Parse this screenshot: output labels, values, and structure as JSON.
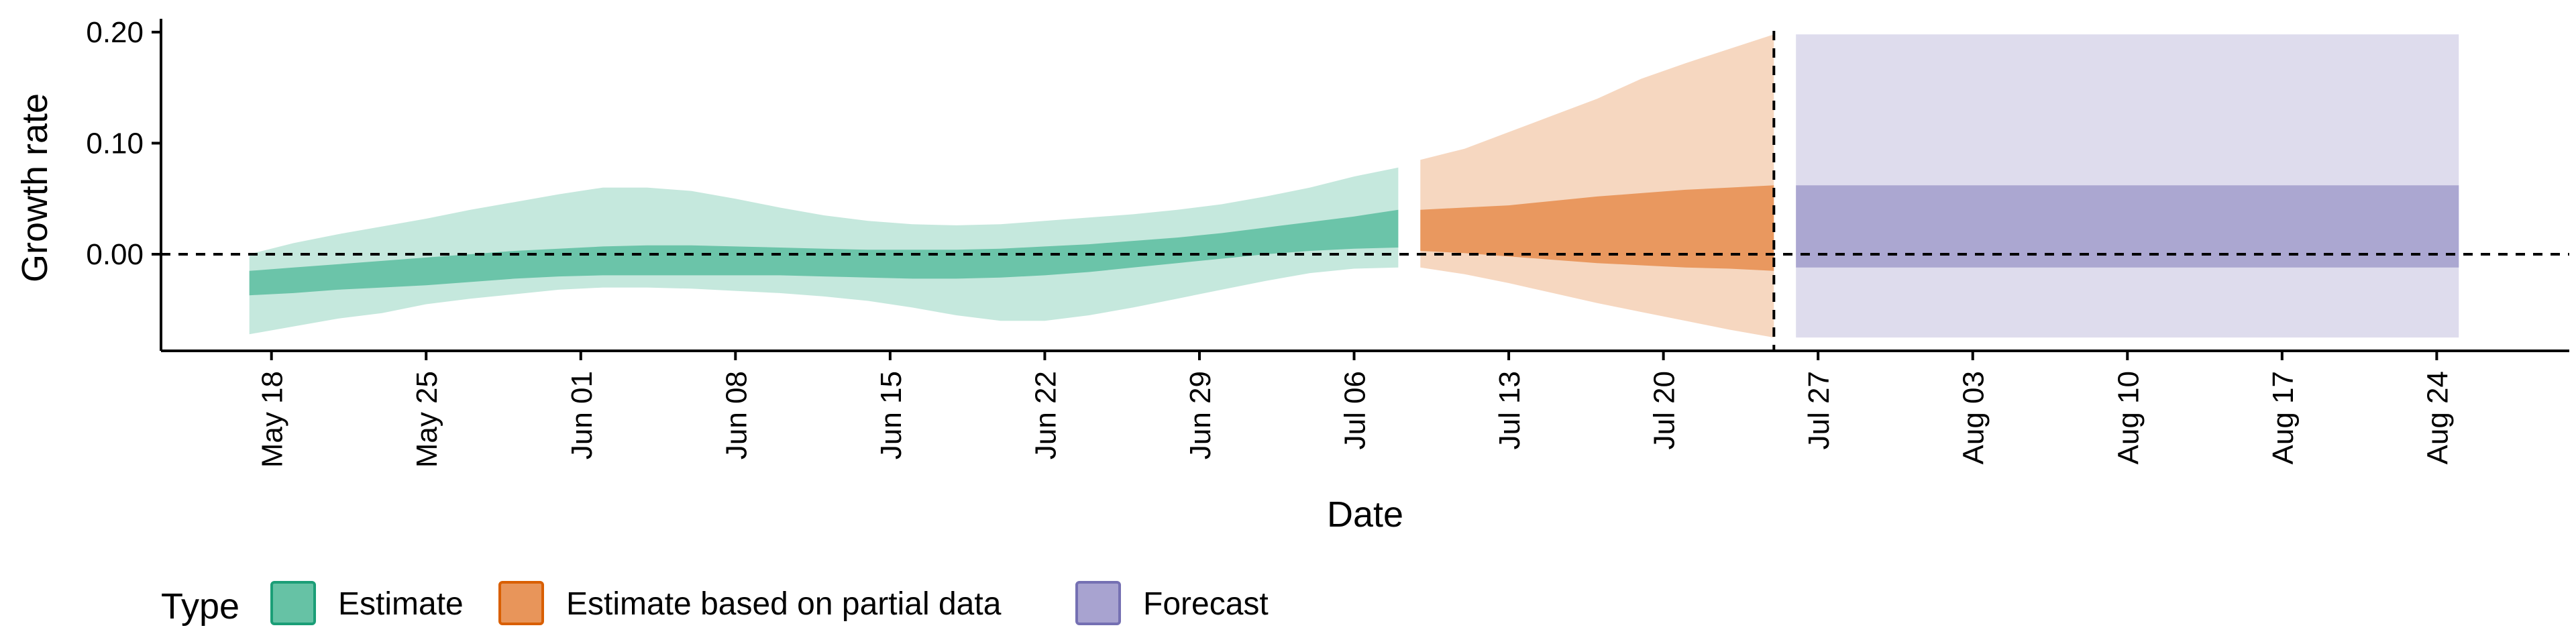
{
  "chart_data": {
    "type": "area",
    "xlabel": "Date",
    "ylabel": "Growth rate",
    "x_axis_type": "date",
    "x_range": [
      "2020-05-13",
      "2020-08-30"
    ],
    "y_range": [
      -0.087,
      0.212
    ],
    "y_ticks": [
      0.0,
      0.1,
      0.2
    ],
    "y_tick_labels": [
      "0.00",
      "0.10",
      "0.20"
    ],
    "x_ticks": [
      "2020-05-18",
      "2020-05-25",
      "2020-06-01",
      "2020-06-08",
      "2020-06-15",
      "2020-06-22",
      "2020-06-29",
      "2020-07-06",
      "2020-07-13",
      "2020-07-20",
      "2020-07-27",
      "2020-08-03",
      "2020-08-10",
      "2020-08-17",
      "2020-08-24"
    ],
    "x_tick_labels": [
      "May 18",
      "May 25",
      "Jun 01",
      "Jun 08",
      "Jun 15",
      "Jun 22",
      "Jun 29",
      "Jul 06",
      "Jul 13",
      "Jul 20",
      "Jul 27",
      "Aug 03",
      "Aug 10",
      "Aug 17",
      "Aug 24"
    ],
    "grid": false,
    "hline": {
      "y": 0,
      "style": "dashed"
    },
    "vline": {
      "x": "2020-07-25",
      "style": "dashed"
    },
    "legend": {
      "title": "Type",
      "position": "bottom-left",
      "entries": [
        {
          "label": "Estimate",
          "fill": "#66c2a5",
          "border": "#1b9e77"
        },
        {
          "label": "Estimate based on partial data",
          "fill": "#e8955a",
          "border": "#d95f02"
        },
        {
          "label": "Forecast",
          "fill": "#a8a3d0",
          "border": "#7570b3"
        }
      ]
    },
    "series": [
      {
        "name": "Estimate",
        "color": "#66c2a5",
        "x": [
          "2020-05-17",
          "2020-05-19",
          "2020-05-21",
          "2020-05-23",
          "2020-05-25",
          "2020-05-27",
          "2020-05-29",
          "2020-05-31",
          "2020-06-02",
          "2020-06-04",
          "2020-06-06",
          "2020-06-08",
          "2020-06-10",
          "2020-06-12",
          "2020-06-14",
          "2020-06-16",
          "2020-06-18",
          "2020-06-20",
          "2020-06-22",
          "2020-06-24",
          "2020-06-26",
          "2020-06-28",
          "2020-06-30",
          "2020-07-02",
          "2020-07-04",
          "2020-07-06",
          "2020-07-08"
        ],
        "lower_90": [
          -0.072,
          -0.065,
          -0.058,
          -0.053,
          -0.045,
          -0.04,
          -0.036,
          -0.032,
          -0.03,
          -0.03,
          -0.031,
          -0.033,
          -0.035,
          -0.038,
          -0.042,
          -0.048,
          -0.055,
          -0.06,
          -0.06,
          -0.055,
          -0.048,
          -0.04,
          -0.032,
          -0.024,
          -0.017,
          -0.013,
          -0.012
        ],
        "upper_90": [
          0.0,
          0.01,
          0.018,
          0.025,
          0.032,
          0.04,
          0.047,
          0.054,
          0.06,
          0.06,
          0.057,
          0.05,
          0.042,
          0.035,
          0.03,
          0.027,
          0.026,
          0.027,
          0.03,
          0.033,
          0.036,
          0.04,
          0.045,
          0.052,
          0.06,
          0.07,
          0.078
        ],
        "lower_50": [
          -0.037,
          -0.035,
          -0.032,
          -0.03,
          -0.028,
          -0.025,
          -0.022,
          -0.02,
          -0.019,
          -0.019,
          -0.019,
          -0.019,
          -0.019,
          -0.02,
          -0.021,
          -0.022,
          -0.022,
          -0.021,
          -0.019,
          -0.016,
          -0.012,
          -0.008,
          -0.004,
          0.0,
          0.003,
          0.005,
          0.006
        ],
        "upper_50": [
          -0.015,
          -0.012,
          -0.009,
          -0.006,
          -0.003,
          0.0,
          0.003,
          0.005,
          0.007,
          0.008,
          0.008,
          0.007,
          0.006,
          0.005,
          0.004,
          0.004,
          0.004,
          0.005,
          0.007,
          0.009,
          0.012,
          0.015,
          0.019,
          0.024,
          0.029,
          0.034,
          0.04
        ]
      },
      {
        "name": "Estimate based on partial data",
        "color": "#e8955a",
        "x": [
          "2020-07-09",
          "2020-07-11",
          "2020-07-13",
          "2020-07-15",
          "2020-07-17",
          "2020-07-19",
          "2020-07-21",
          "2020-07-23",
          "2020-07-25"
        ],
        "lower_90": [
          -0.012,
          -0.018,
          -0.026,
          -0.035,
          -0.044,
          -0.052,
          -0.06,
          -0.068,
          -0.075
        ],
        "upper_90": [
          0.085,
          0.095,
          0.11,
          0.125,
          0.14,
          0.158,
          0.172,
          0.185,
          0.198
        ],
        "lower_50": [
          0.003,
          0.001,
          -0.002,
          -0.005,
          -0.008,
          -0.01,
          -0.012,
          -0.013,
          -0.015
        ],
        "upper_50": [
          0.04,
          0.042,
          0.044,
          0.048,
          0.052,
          0.055,
          0.058,
          0.06,
          0.062
        ]
      },
      {
        "name": "Forecast",
        "color": "#a8a3d0",
        "x": [
          "2020-07-26",
          "2020-08-25"
        ],
        "lower_90": [
          -0.075,
          -0.075
        ],
        "upper_90": [
          0.198,
          0.198
        ],
        "lower_50": [
          -0.012,
          -0.012
        ],
        "upper_50": [
          0.062,
          0.062
        ]
      }
    ]
  }
}
